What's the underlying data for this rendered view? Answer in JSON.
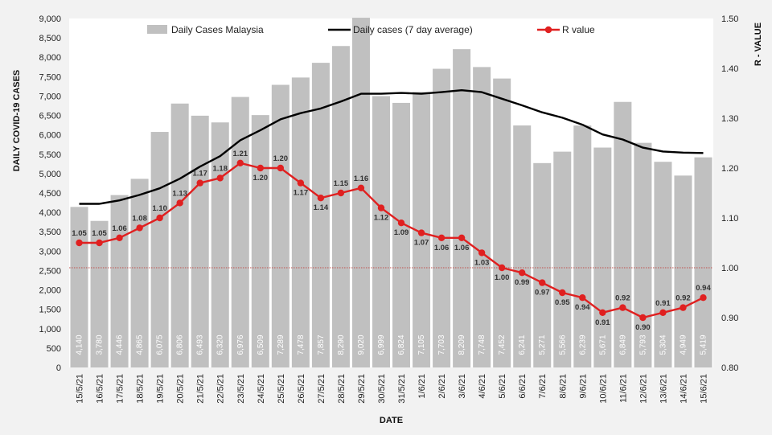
{
  "chart_data": {
    "type": "bar",
    "categories": [
      "15/5/21",
      "16/5/21",
      "17/5/21",
      "18/5/21",
      "19/5/21",
      "20/5/21",
      "21/5/21",
      "22/5/21",
      "23/5/21",
      "24/5/21",
      "25/5/21",
      "26/5/21",
      "27/5/21",
      "28/5/21",
      "29/5/21",
      "30/5/21",
      "31/5/21",
      "1/6/21",
      "2/6/21",
      "3/6/21",
      "4/6/21",
      "5/6/21",
      "6/6/21",
      "7/6/21",
      "8/6/21",
      "9/6/21",
      "10/6/21",
      "11/6/21",
      "12/6/21",
      "13/6/21",
      "14/6/21",
      "15/6/21"
    ],
    "series": [
      {
        "name": "Daily Cases Malaysia",
        "type": "bar",
        "axis": "left",
        "color": "#c0c0c0",
        "values": [
          4140,
          3780,
          4446,
          4865,
          6075,
          6806,
          6493,
          6320,
          6976,
          6509,
          7289,
          7478,
          7857,
          8290,
          9020,
          6999,
          6824,
          7105,
          7703,
          8209,
          7748,
          7452,
          6241,
          5271,
          5566,
          6239,
          5671,
          6849,
          5793,
          5304,
          4949,
          5419
        ],
        "labels": [
          "4,140",
          "3,780",
          "4,446",
          "4,865",
          "6,075",
          "6,806",
          "6,493",
          "6,320",
          "6,976",
          "6,509",
          "7,289",
          "7,478",
          "7,857",
          "8,290",
          "9,020",
          "6,999",
          "6,824",
          "7,105",
          "7,703",
          "8,209",
          "7,748",
          "7,452",
          "6,241",
          "5,271",
          "5,566",
          "6,239",
          "5,671",
          "6,849",
          "5,793",
          "5,304",
          "4,949",
          "5,419"
        ]
      },
      {
        "name": "Daily cases (7 day average)",
        "type": "line",
        "axis": "left",
        "color": "#000000",
        "values": [
          4220,
          4220,
          4310,
          4450,
          4620,
          4870,
          5180,
          5450,
          5860,
          6120,
          6400,
          6560,
          6680,
          6860,
          7060,
          7060,
          7080,
          7060,
          7100,
          7150,
          7100,
          6930,
          6760,
          6580,
          6440,
          6260,
          6010,
          5880,
          5670,
          5570,
          5540,
          5530
        ]
      },
      {
        "name": "R value",
        "type": "line",
        "axis": "right",
        "color": "#e02020",
        "values": [
          1.05,
          1.05,
          1.06,
          1.08,
          1.1,
          1.13,
          1.17,
          1.18,
          1.21,
          1.2,
          1.2,
          1.17,
          1.14,
          1.15,
          1.16,
          1.12,
          1.09,
          1.07,
          1.06,
          1.06,
          1.03,
          1.0,
          0.99,
          0.97,
          0.95,
          0.94,
          0.91,
          0.92,
          0.9,
          0.91,
          0.92,
          0.94
        ],
        "labels": [
          "1.05",
          "1.05",
          "1.06",
          "1.08",
          "1.10",
          "1.13",
          "1.17",
          "1.18",
          "1.21",
          "1.20",
          "1.20",
          "1.17",
          "1.14",
          "1.15",
          "1.16",
          "1.12",
          "1.09",
          "1.07",
          "1.06",
          "1.06",
          "1.03",
          "1.00",
          "0.99",
          "0.97",
          "0.95",
          "0.94",
          "0.91",
          "0.92",
          "0.90",
          "0.91",
          "0.92",
          "0.94"
        ]
      }
    ],
    "title": "",
    "xlabel": "DATE",
    "ylabel": "DAILY COVID-19 CASES",
    "y2label": "R - VALUE",
    "ylim": [
      0,
      9000
    ],
    "y2lim": [
      0.8,
      1.5
    ],
    "yticks": [
      "0",
      "500",
      "1,000",
      "1,500",
      "2,000",
      "2,500",
      "3,000",
      "3,500",
      "4,000",
      "4,500",
      "5,000",
      "5,500",
      "6,000",
      "6,500",
      "7,000",
      "7,500",
      "8,000",
      "8,500",
      "9,000"
    ],
    "y2ticks": [
      "0.80",
      "0.90",
      "1.00",
      "1.10",
      "1.20",
      "1.30",
      "1.40",
      "1.50"
    ],
    "reference_line": {
      "axis": "right",
      "value": 1.0,
      "color": "#c0504d",
      "style": "dotted"
    },
    "legend_position": "top",
    "grid": false
  }
}
